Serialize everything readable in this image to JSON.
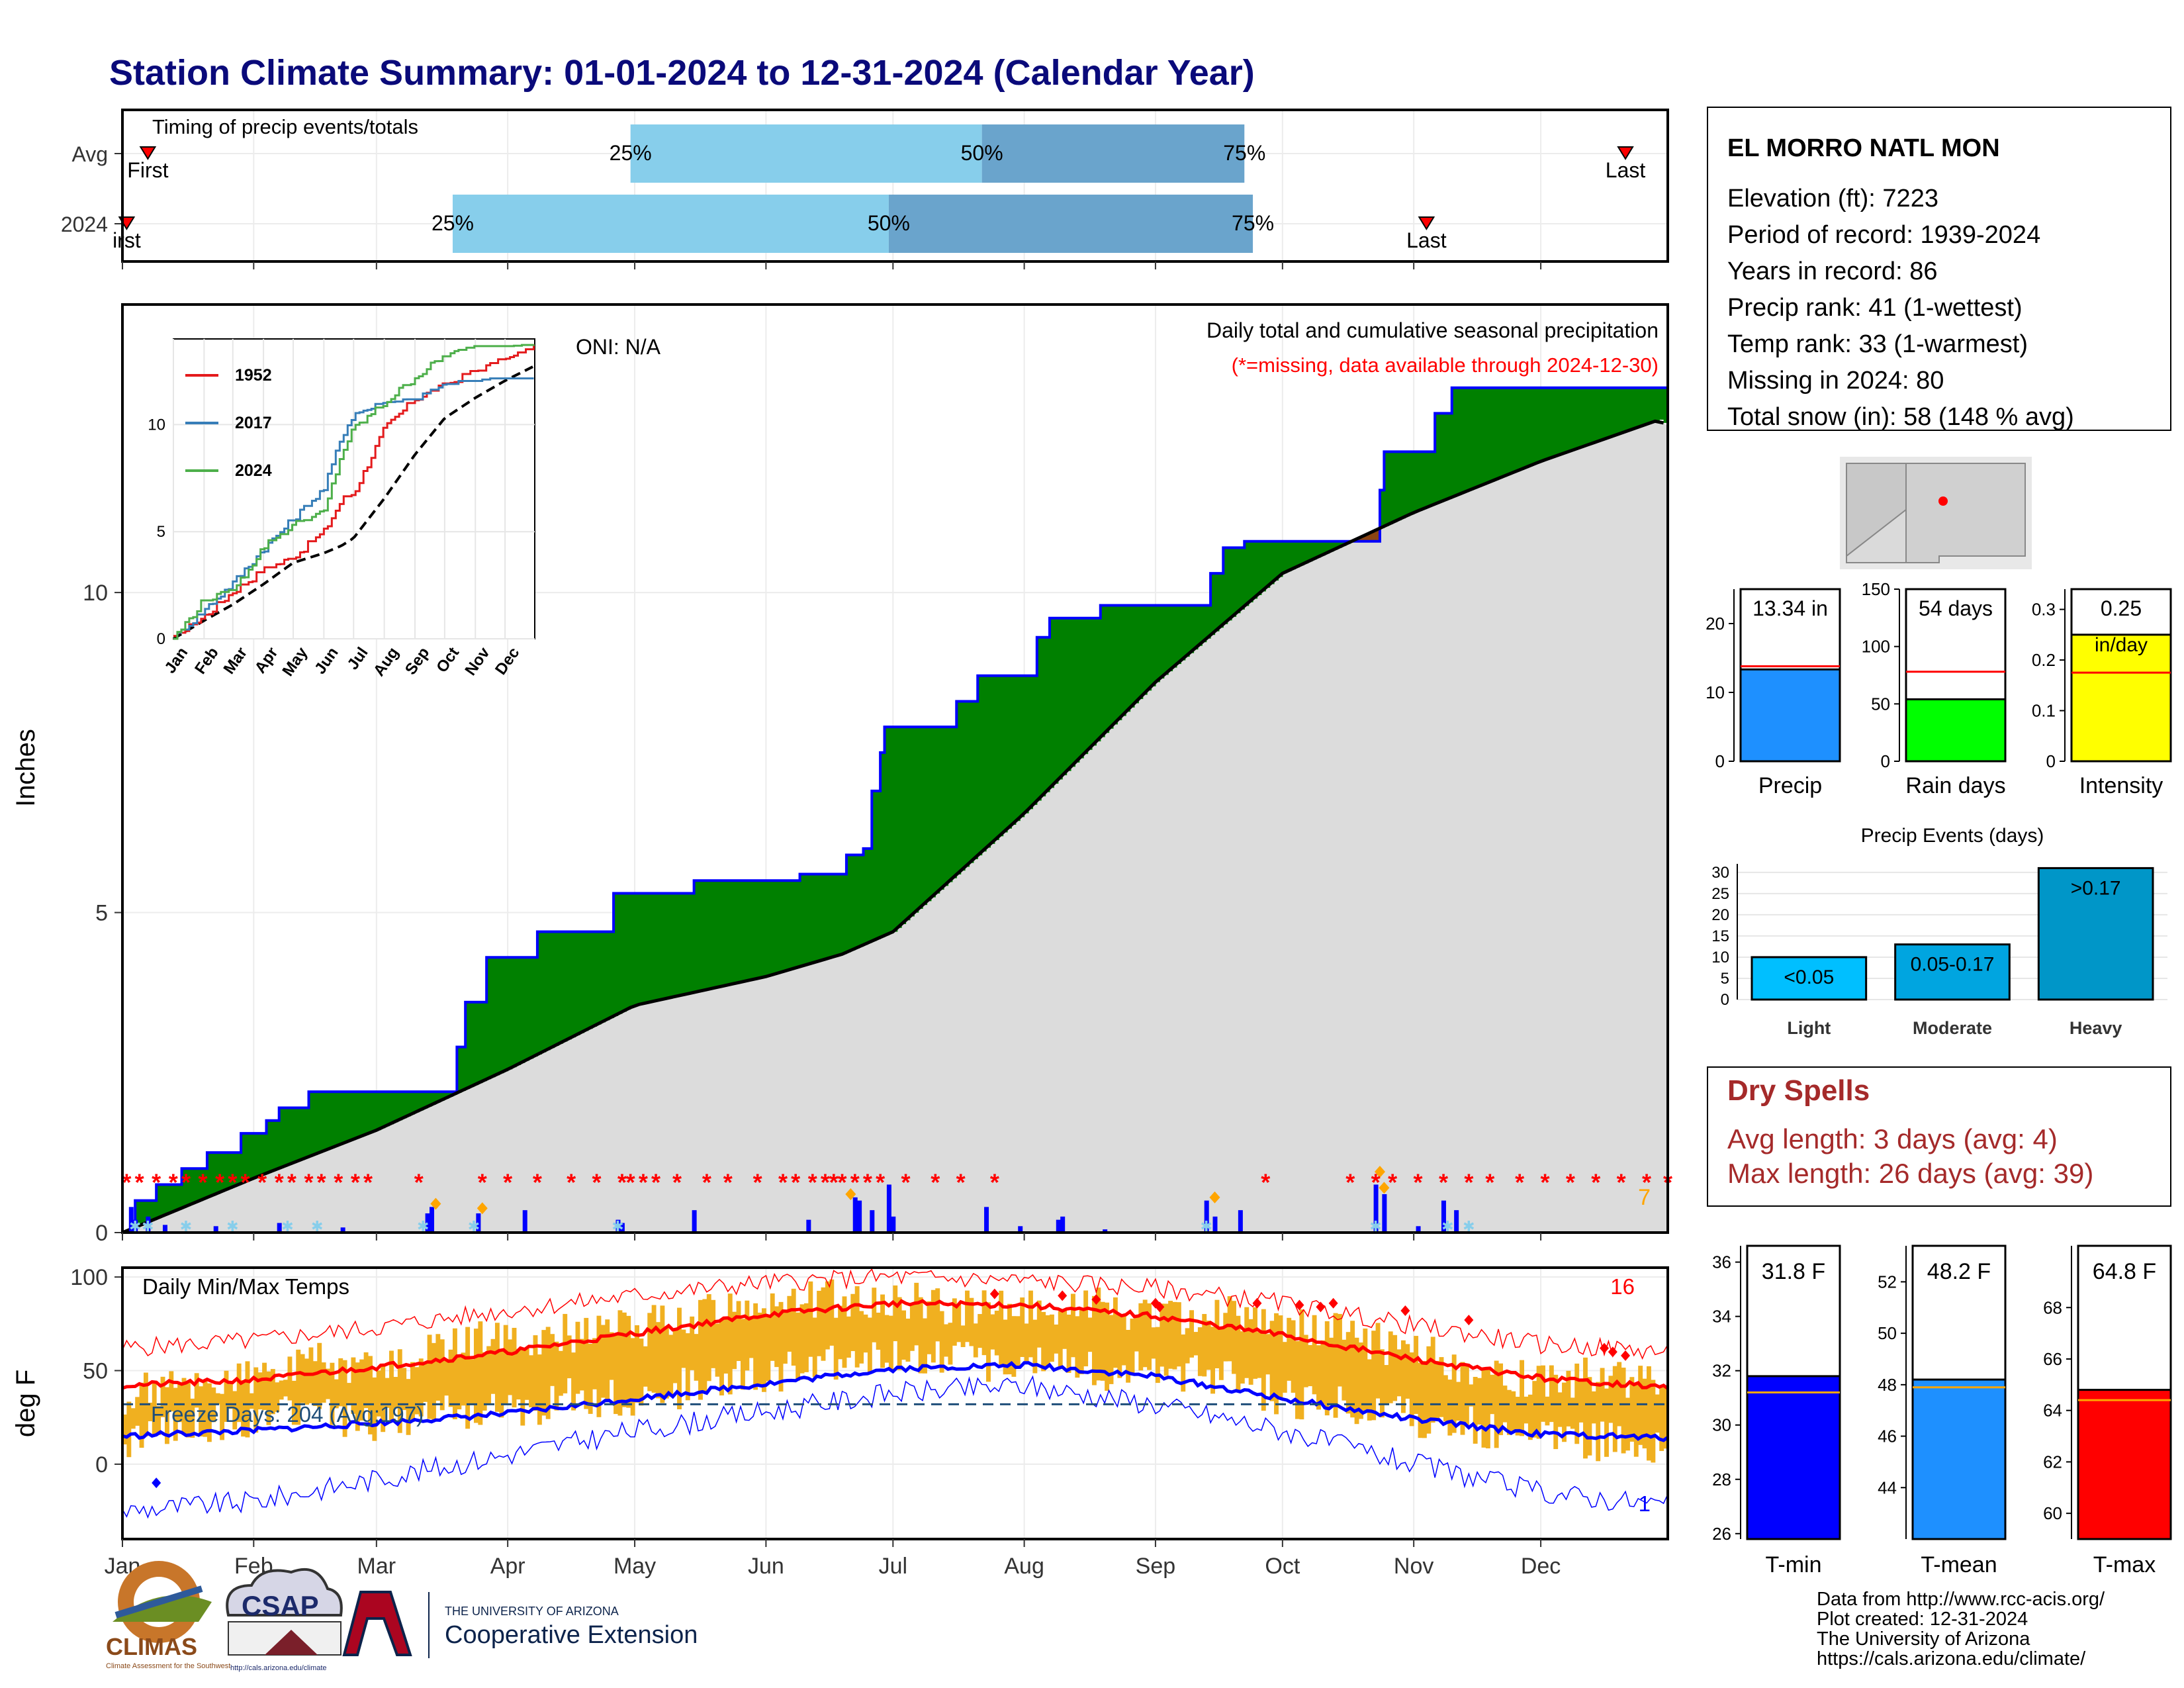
{
  "title": "Station Climate Summary: 01-01-2024 to 12-31-2024 (Calendar Year)",
  "colors": {
    "title": "#0a0a7a",
    "precip_fill": "#008000",
    "normal_fill": "#dcdcdc",
    "deficit_fill": "#8b4513",
    "line_blue": "#0000ff",
    "missing": "#ff0000",
    "tmax": "#ff0000",
    "tmin": "#0000ff",
    "temp_bar": "#f0b020",
    "q1": "#87ceeb",
    "q2": "#6aa4cc",
    "dryspell": "#a52a2a"
  },
  "timing": {
    "title": "Timing of precip events/totals",
    "rows": [
      {
        "label": "Avg",
        "first_label": "First",
        "last_label": "Last",
        "first_doy": 6,
        "p25_doy": 120,
        "p50_doy": 203,
        "p75_doy": 265,
        "last_doy": 355,
        "p25_label": "25%",
        "p50_label": "50%",
        "p75_label": "75%"
      },
      {
        "label": "2024",
        "first_label": "irst",
        "last_label": "Last",
        "first_doy": 1,
        "p25_doy": 78,
        "p50_doy": 181,
        "p75_doy": 267,
        "last_doy": 308,
        "p25_label": "25%",
        "p50_label": "50%",
        "p75_label": "75%"
      }
    ]
  },
  "precip": {
    "ylabel": "Inches",
    "yticks": [
      0,
      5,
      10
    ],
    "ylim": [
      0,
      14.5
    ],
    "header": "Daily total and cumulative seasonal precipitation",
    "missing_note": "(*=missing, data available through 2024-12-30)",
    "oni": "ONI: N/A",
    "count_label": "7",
    "cum_2024": [
      [
        0,
        0
      ],
      [
        3,
        0.5
      ],
      [
        8,
        0.75
      ],
      [
        14,
        1.0
      ],
      [
        20,
        1.25
      ],
      [
        28,
        1.55
      ],
      [
        34,
        1.75
      ],
      [
        37,
        1.95
      ],
      [
        44,
        2.2
      ],
      [
        62,
        2.2
      ],
      [
        67,
        2.2
      ],
      [
        77,
        2.2
      ],
      [
        79,
        2.9
      ],
      [
        81,
        3.6
      ],
      [
        84,
        3.6
      ],
      [
        86,
        4.3
      ],
      [
        96,
        4.3
      ],
      [
        98,
        4.7
      ],
      [
        115,
        4.7
      ],
      [
        116,
        5.3
      ],
      [
        134,
        5.3
      ],
      [
        135,
        5.5
      ],
      [
        159,
        5.5
      ],
      [
        160,
        5.6
      ],
      [
        168,
        5.6
      ],
      [
        171,
        5.9
      ],
      [
        175,
        6.0
      ],
      [
        177,
        6.9
      ],
      [
        179,
        7.5
      ],
      [
        180,
        7.9
      ],
      [
        193,
        7.9
      ],
      [
        197,
        8.3
      ],
      [
        202,
        8.7
      ],
      [
        214,
        8.7
      ],
      [
        216,
        9.3
      ],
      [
        219,
        9.6
      ],
      [
        230,
        9.6
      ],
      [
        231,
        9.8
      ],
      [
        256,
        9.8
      ],
      [
        257,
        10.3
      ],
      [
        260,
        10.7
      ],
      [
        264,
        10.7
      ],
      [
        265,
        10.8
      ],
      [
        296,
        10.8
      ],
      [
        297,
        11.6
      ],
      [
        298,
        12.2
      ],
      [
        309,
        12.2
      ],
      [
        310,
        12.8
      ],
      [
        313,
        12.8
      ],
      [
        314,
        13.2
      ],
      [
        365,
        13.2
      ]
    ],
    "cum_normal": [
      [
        0,
        0
      ],
      [
        31,
        0.85
      ],
      [
        60,
        1.6
      ],
      [
        91,
        2.55
      ],
      [
        121,
        3.55
      ],
      [
        152,
        4.0
      ],
      [
        170,
        4.35
      ],
      [
        182,
        4.7
      ],
      [
        213,
        6.55
      ],
      [
        244,
        8.6
      ],
      [
        274,
        10.3
      ],
      [
        305,
        11.25
      ],
      [
        335,
        12.05
      ],
      [
        363,
        12.7
      ],
      [
        365,
        12.6
      ]
    ],
    "missing_doys": [
      1,
      4,
      8,
      12,
      15,
      19,
      23,
      26,
      29,
      33,
      37,
      40,
      44,
      47,
      51,
      55,
      58,
      70,
      85,
      91,
      98,
      106,
      112,
      118,
      120,
      123,
      126,
      131,
      138,
      143,
      150,
      156,
      159,
      163,
      166,
      168,
      170,
      173,
      176,
      179,
      185,
      192,
      198,
      206,
      270,
      290,
      296,
      300,
      306,
      312,
      318,
      323,
      330,
      336,
      342,
      348,
      354,
      360,
      365
    ],
    "daily_bars": [
      [
        2,
        0.4
      ],
      [
        3,
        0.2
      ],
      [
        6,
        0.25
      ],
      [
        10,
        0.12
      ],
      [
        22,
        0.1
      ],
      [
        37,
        0.15
      ],
      [
        52,
        0.08
      ],
      [
        72,
        0.3
      ],
      [
        73,
        0.4
      ],
      [
        84,
        0.3
      ],
      [
        95,
        0.35
      ],
      [
        117,
        0.2
      ],
      [
        118,
        0.15
      ],
      [
        135,
        0.35
      ],
      [
        162,
        0.2
      ],
      [
        173,
        0.55
      ],
      [
        174,
        0.5
      ],
      [
        177,
        0.35
      ],
      [
        181,
        0.75
      ],
      [
        182,
        0.25
      ],
      [
        204,
        0.4
      ],
      [
        212,
        0.1
      ],
      [
        221,
        0.2
      ],
      [
        222,
        0.25
      ],
      [
        232,
        0.05
      ],
      [
        256,
        0.5
      ],
      [
        258,
        0.25
      ],
      [
        264,
        0.35
      ],
      [
        296,
        0.75
      ],
      [
        298,
        0.6
      ],
      [
        306,
        0.1
      ],
      [
        312,
        0.5
      ],
      [
        315,
        0.35
      ]
    ],
    "event_diamonds": [
      [
        74,
        0.45
      ],
      [
        85,
        0.38
      ],
      [
        172,
        0.6
      ],
      [
        258,
        0.55
      ],
      [
        297,
        0.95
      ],
      [
        298,
        0.7
      ]
    ]
  },
  "inset": {
    "series": [
      {
        "name": "1952",
        "color": "#e41a1c",
        "points": [
          [
            0,
            0
          ],
          [
            30,
            1.0
          ],
          [
            60,
            2.2
          ],
          [
            91,
            3.2
          ],
          [
            121,
            3.8
          ],
          [
            152,
            5.0
          ],
          [
            170,
            6.5
          ],
          [
            182,
            6.8
          ],
          [
            213,
            9.8
          ],
          [
            244,
            11.2
          ],
          [
            274,
            11.8
          ],
          [
            305,
            12.5
          ],
          [
            335,
            13.0
          ],
          [
            365,
            13.6
          ]
        ]
      },
      {
        "name": "2017",
        "color": "#377eb8",
        "points": [
          [
            0,
            0
          ],
          [
            30,
            1.3
          ],
          [
            60,
            2.6
          ],
          [
            91,
            4.2
          ],
          [
            121,
            5.6
          ],
          [
            152,
            7.0
          ],
          [
            170,
            9.5
          ],
          [
            182,
            10.5
          ],
          [
            213,
            11.0
          ],
          [
            244,
            11.2
          ],
          [
            274,
            11.8
          ],
          [
            305,
            12.0
          ],
          [
            335,
            12.0
          ],
          [
            365,
            12.0
          ]
        ]
      },
      {
        "name": "2024",
        "color": "#4daf4a",
        "points": [
          [
            0,
            0
          ],
          [
            30,
            1.75
          ],
          [
            60,
            2.2
          ],
          [
            91,
            4.3
          ],
          [
            121,
            5.3
          ],
          [
            152,
            5.9
          ],
          [
            170,
            8.7
          ],
          [
            182,
            9.8
          ],
          [
            213,
            11.0
          ],
          [
            244,
            12.2
          ],
          [
            274,
            13.2
          ],
          [
            305,
            13.6
          ],
          [
            335,
            13.6
          ],
          [
            365,
            13.6
          ]
        ]
      }
    ],
    "yticks": [
      0,
      5,
      10
    ],
    "months": [
      "Jan",
      "Feb",
      "Mar",
      "Apr",
      "May",
      "Jun",
      "Jul",
      "Aug",
      "Sep",
      "Oct",
      "Nov",
      "Dec"
    ]
  },
  "temps": {
    "title": "Daily Min/Max Temps",
    "ylabel": "deg F",
    "yticks": [
      0,
      50,
      100
    ],
    "ylim": [
      -40,
      105
    ],
    "freeze_label": "Freeze Days: 204 (Avg:197)",
    "freeze_line": 32,
    "high_count_label": "16",
    "low_count_label": "1",
    "normal_max": [
      [
        0,
        42
      ],
      [
        31,
        45
      ],
      [
        60,
        52
      ],
      [
        91,
        60
      ],
      [
        121,
        70
      ],
      [
        152,
        80
      ],
      [
        182,
        86
      ],
      [
        213,
        85
      ],
      [
        244,
        79
      ],
      [
        274,
        69
      ],
      [
        305,
        56
      ],
      [
        335,
        46
      ],
      [
        365,
        41
      ]
    ],
    "normal_min": [
      [
        0,
        15
      ],
      [
        31,
        18
      ],
      [
        60,
        22
      ],
      [
        91,
        27
      ],
      [
        121,
        35
      ],
      [
        152,
        43
      ],
      [
        182,
        51
      ],
      [
        213,
        53
      ],
      [
        244,
        47
      ],
      [
        274,
        35
      ],
      [
        305,
        24
      ],
      [
        335,
        16
      ],
      [
        365,
        14
      ]
    ],
    "record_max": [
      [
        0,
        62
      ],
      [
        31,
        66
      ],
      [
        60,
        73
      ],
      [
        91,
        82
      ],
      [
        121,
        90
      ],
      [
        152,
        97
      ],
      [
        182,
        100
      ],
      [
        213,
        98
      ],
      [
        244,
        94
      ],
      [
        274,
        86
      ],
      [
        305,
        74
      ],
      [
        335,
        64
      ],
      [
        365,
        60
      ]
    ],
    "record_min": [
      [
        0,
        -25
      ],
      [
        31,
        -20
      ],
      [
        60,
        -8
      ],
      [
        91,
        5
      ],
      [
        121,
        18
      ],
      [
        152,
        28
      ],
      [
        182,
        38
      ],
      [
        213,
        42
      ],
      [
        244,
        32
      ],
      [
        274,
        18
      ],
      [
        305,
        0
      ],
      [
        335,
        -15
      ],
      [
        365,
        -22
      ]
    ],
    "record_high_doys": [
      [
        206,
        91
      ],
      [
        222,
        90
      ],
      [
        230,
        88
      ],
      [
        244,
        86
      ],
      [
        245,
        84
      ],
      [
        268,
        86
      ],
      [
        278,
        85
      ],
      [
        283,
        84
      ],
      [
        286,
        86
      ],
      [
        303,
        82
      ],
      [
        318,
        77
      ],
      [
        350,
        62
      ],
      [
        352,
        60
      ],
      [
        355,
        58
      ]
    ],
    "record_low_doys": [
      [
        8,
        -10
      ]
    ],
    "daily_max_anchor": [
      [
        0,
        35
      ],
      [
        15,
        45
      ],
      [
        31,
        48
      ],
      [
        45,
        55
      ],
      [
        60,
        50
      ],
      [
        75,
        62
      ],
      [
        91,
        68
      ],
      [
        105,
        70
      ],
      [
        121,
        72
      ],
      [
        135,
        80
      ],
      [
        152,
        86
      ],
      [
        165,
        88
      ],
      [
        182,
        87
      ],
      [
        200,
        84
      ],
      [
        213,
        86
      ],
      [
        230,
        85
      ],
      [
        244,
        78
      ],
      [
        260,
        80
      ],
      [
        274,
        75
      ],
      [
        290,
        68
      ],
      [
        305,
        60
      ],
      [
        320,
        50
      ],
      [
        335,
        45
      ],
      [
        350,
        48
      ],
      [
        365,
        42
      ]
    ],
    "daily_min_anchor": [
      [
        0,
        10
      ],
      [
        15,
        20
      ],
      [
        31,
        25
      ],
      [
        45,
        28
      ],
      [
        60,
        22
      ],
      [
        75,
        30
      ],
      [
        91,
        28
      ],
      [
        105,
        35
      ],
      [
        121,
        35
      ],
      [
        135,
        42
      ],
      [
        152,
        48
      ],
      [
        165,
        52
      ],
      [
        182,
        55
      ],
      [
        200,
        55
      ],
      [
        213,
        55
      ],
      [
        230,
        50
      ],
      [
        244,
        50
      ],
      [
        260,
        45
      ],
      [
        274,
        35
      ],
      [
        290,
        30
      ],
      [
        305,
        25
      ],
      [
        320,
        20
      ],
      [
        335,
        15
      ],
      [
        350,
        12
      ],
      [
        365,
        10
      ]
    ]
  },
  "xaxis_months": [
    "Jan",
    "Feb",
    "Mar",
    "Apr",
    "May",
    "Jun",
    "Jul",
    "Aug",
    "Sep",
    "Oct",
    "Nov",
    "Dec"
  ],
  "station": {
    "name": "EL MORRO NATL MON",
    "lines": [
      "Elevation (ft): 7223",
      "Period of record: 1939-2024",
      "Years in record: 86",
      "Precip rank: 41 (1-wettest)",
      "Temp rank: 33 (1-warmest)",
      "Missing in 2024: 80",
      "Total snow (in): 58 (148 % avg)"
    ]
  },
  "mini_bars": [
    {
      "name": "Precip",
      "value": 13.34,
      "value_label": "13.34 in",
      "avg": 13.8,
      "ymax": 25,
      "yticks": [
        0,
        10,
        20
      ],
      "color": "#1e90ff"
    },
    {
      "name": "Rain days",
      "value": 54,
      "value_label": "54 days",
      "avg": 78,
      "ymax": 150,
      "yticks": [
        0,
        50,
        100,
        150
      ],
      "color": "#00ff00"
    },
    {
      "name": "Intensity",
      "value": 0.25,
      "value_label": "0.25",
      "value_sub": "in/day",
      "avg": 0.175,
      "ymax": 0.34,
      "yticks": [
        0.0,
        0.1,
        0.2,
        0.3
      ],
      "color": "#ffff00"
    }
  ],
  "events": {
    "title": "Precip Events (days)",
    "categories": [
      "Light",
      "Moderate",
      "Heavy"
    ],
    "values": [
      10,
      13,
      31
    ],
    "labels": [
      "<0.05",
      "0.05-0.17",
      ">0.17"
    ],
    "yticks": [
      0,
      5,
      10,
      15,
      20,
      25,
      30
    ],
    "colors": [
      "#00bfff",
      "#00a5e0",
      "#0096c8"
    ]
  },
  "dry_spells": {
    "title": "Dry Spells",
    "avg_line": "Avg length: 3 days (avg: 4)",
    "max_line": "Max length: 26 days (avg: 39)"
  },
  "temp_bars": [
    {
      "name": "T-min",
      "value": 31.8,
      "value_label": "31.8 F",
      "avg": 31.2,
      "ylim": [
        25.8,
        36.6
      ],
      "yticks": [
        26,
        28,
        30,
        32,
        34,
        36
      ],
      "color": "#0000ff"
    },
    {
      "name": "T-mean",
      "value": 48.2,
      "value_label": "48.2 F",
      "avg": 47.9,
      "ylim": [
        42.0,
        53.4
      ],
      "yticks": [
        44,
        46,
        48,
        50,
        52
      ],
      "color": "#1e90ff"
    },
    {
      "name": "T-max",
      "value": 64.8,
      "value_label": "64.8 F",
      "avg": 64.4,
      "ylim": [
        59.0,
        70.4
      ],
      "yticks": [
        60,
        62,
        64,
        66,
        68
      ],
      "color": "#ff0000"
    }
  ],
  "credits": [
    "Data from http://www.rcc-acis.org/",
    "Plot created: 12-31-2024",
    "The University of Arizona",
    "https://cals.arizona.edu/climate/"
  ],
  "logos": {
    "climas": "CLIMAS",
    "climas_sub": "Climate Assessment for the Southwest",
    "csap": "CSAP",
    "csap_url": "http://cals.arizona.edu/climate",
    "ua_top": "THE UNIVERSITY OF ARIZONA",
    "ua_bottom": "Cooperative Extension"
  }
}
